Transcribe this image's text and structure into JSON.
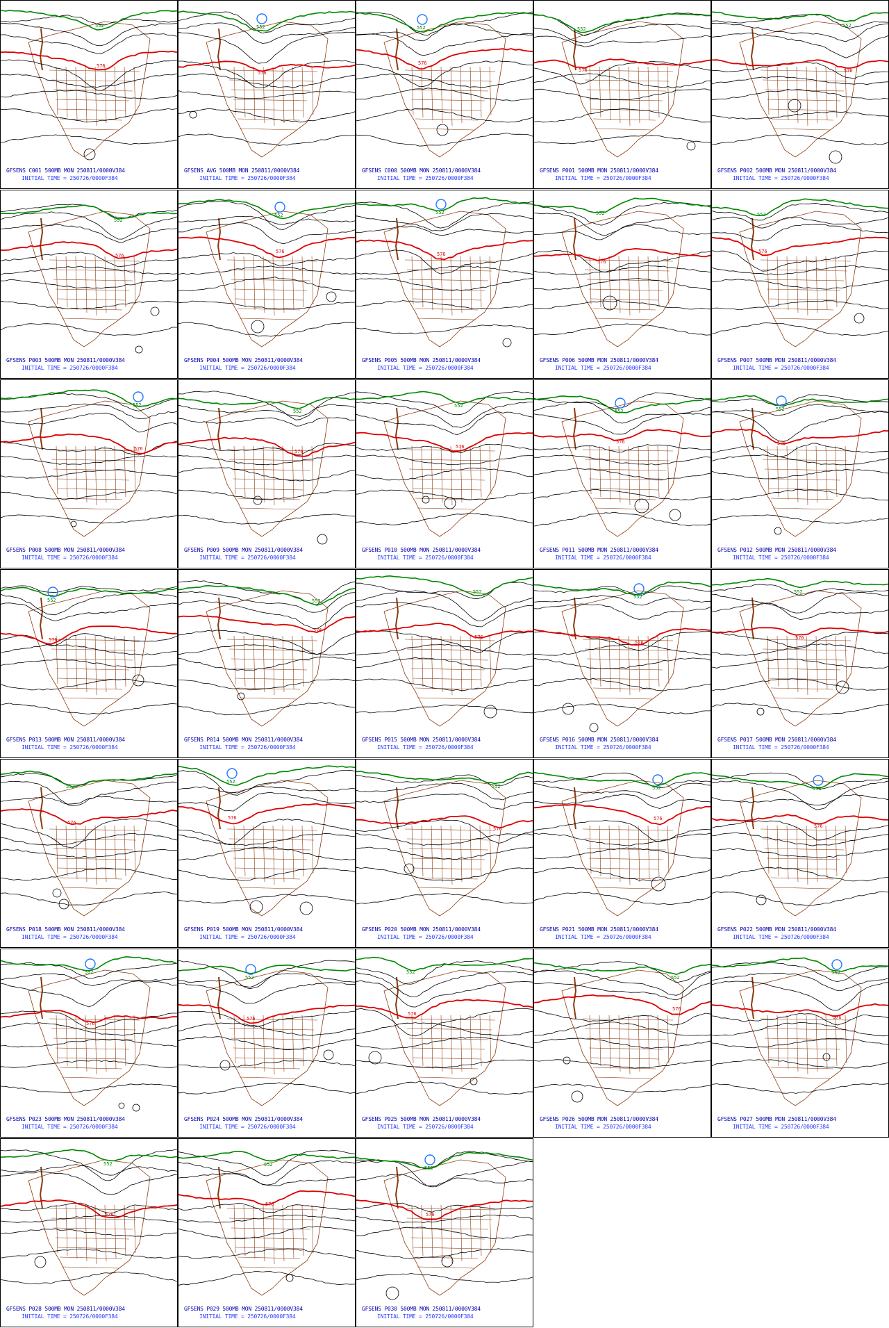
{
  "initial_time_label": "INITIAL TIME = 250726/0000F384",
  "colors": {
    "contour": "#000000",
    "contour_576": "#dd0000",
    "contour_552": "#008800",
    "contour_low": "#2277ff",
    "state_lines": "#8b3a0f",
    "caption": "#0000aa",
    "caption_time": "#2a3cff"
  },
  "contour_labels": {
    "red": "576",
    "green": "552"
  },
  "panels": [
    {
      "title": "GFSENS C001 500MB MON 250811/0000V384"
    },
    {
      "title": "GFSENS AVG 500MB MON 250811/0000V384"
    },
    {
      "title": "GFSENS C000 500MB MON 250811/0000V384"
    },
    {
      "title": "GFSENS P001 500MB MON 250811/0000V384"
    },
    {
      "title": "GFSENS P002 500MB MON 250811/0000V384"
    },
    {
      "title": "GFSENS P003 500MB MON 250811/0000V384"
    },
    {
      "title": "GFSENS P004 500MB MON 250811/0000V384"
    },
    {
      "title": "GFSENS P005 500MB MON 250811/0000V384"
    },
    {
      "title": "GFSENS P006 500MB MON 250811/0000V384"
    },
    {
      "title": "GFSENS P007 500MB MON 250811/0000V384"
    },
    {
      "title": "GFSENS P008 500MB MON 250811/0000V384"
    },
    {
      "title": "GFSENS P009 500MB MON 250811/0000V384"
    },
    {
      "title": "GFSENS P010 500MB MON 250811/0000V384"
    },
    {
      "title": "GFSENS P011 500MB MON 250811/0000V384"
    },
    {
      "title": "GFSENS P012 500MB MON 250811/0000V384"
    },
    {
      "title": "GFSENS P013 500MB MON 250811/0000V384"
    },
    {
      "title": "GFSENS P014 500MB MON 250811/0000V384"
    },
    {
      "title": "GFSENS P015 500MB MON 250811/0000V384"
    },
    {
      "title": "GFSENS P016 500MB MON 250811/0000V384"
    },
    {
      "title": "GFSENS P017 500MB MON 250811/0000V384"
    },
    {
      "title": "GFSENS P018 500MB MON 250811/0000V384"
    },
    {
      "title": "GFSENS P019 500MB MON 250811/0000V384"
    },
    {
      "title": "GFSENS P020 500MB MON 250811/0000V384"
    },
    {
      "title": "GFSENS P021 500MB MON 250811/0000V384"
    },
    {
      "title": "GFSENS P022 500MB MON 250811/0000V384"
    },
    {
      "title": "GFSENS P023 500MB MON 250811/0000V384"
    },
    {
      "title": "GFSENS P024 500MB MON 250811/0000V384"
    },
    {
      "title": "GFSENS P025 500MB MON 250811/0000V384"
    },
    {
      "title": "GFSENS P026 500MB MON 250811/0000V384"
    },
    {
      "title": "GFSENS P027 500MB MON 250811/0000V384"
    },
    {
      "title": "GFSENS P028 500MB MON 250811/0000V384"
    },
    {
      "title": "GFSENS P029 500MB MON 250811/0000V384"
    },
    {
      "title": "GFSENS P030 500MB MON 250811/0000V384"
    }
  ]
}
